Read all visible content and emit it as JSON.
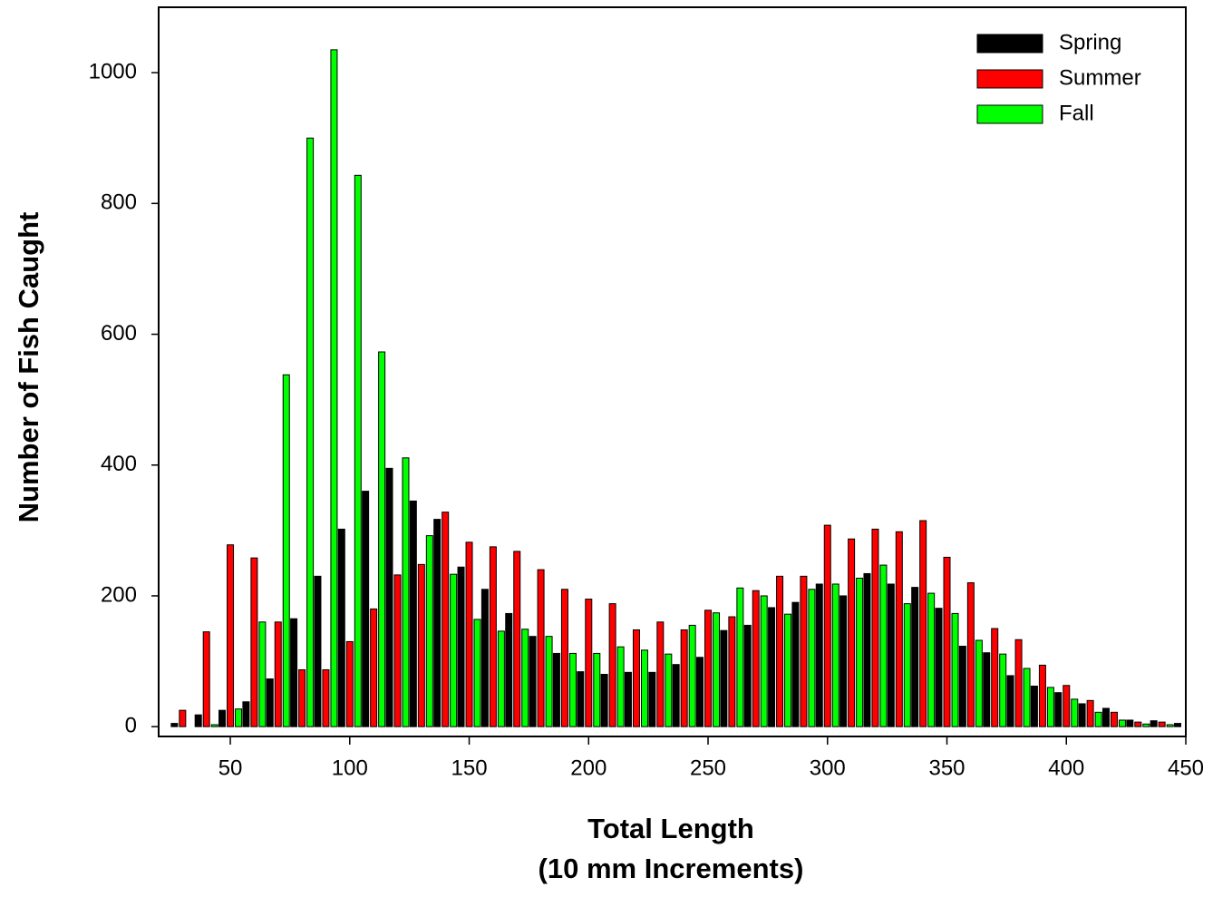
{
  "chart_data": {
    "type": "bar",
    "x_label": "Total Length",
    "x_label_2": "(10 mm Increments)",
    "y_label": "Number of Fish Caught",
    "x": [
      30,
      40,
      50,
      60,
      70,
      80,
      90,
      100,
      110,
      120,
      130,
      140,
      150,
      160,
      170,
      180,
      190,
      200,
      210,
      220,
      230,
      240,
      250,
      260,
      270,
      280,
      290,
      300,
      310,
      320,
      330,
      340,
      350,
      360,
      370,
      380,
      390,
      400,
      410,
      420,
      430,
      440,
      450
    ],
    "series": [
      {
        "name": "Spring",
        "color": "#000000",
        "values": [
          5,
          18,
          25,
          38,
          73,
          165,
          230,
          302,
          360,
          395,
          345,
          317,
          244,
          210,
          173,
          138,
          112,
          84,
          80,
          83,
          83,
          95,
          106,
          147,
          155,
          182,
          190,
          218,
          200,
          234,
          218,
          213,
          181,
          123,
          113,
          78,
          62,
          52,
          35,
          28,
          10,
          9,
          5
        ]
      },
      {
        "name": "Summer",
        "color": "#ff0000",
        "values": [
          25,
          145,
          278,
          258,
          160,
          87,
          87,
          130,
          180,
          232,
          248,
          328,
          282,
          275,
          268,
          240,
          210,
          195,
          188,
          148,
          160,
          148,
          178,
          168,
          208,
          230,
          230,
          308,
          287,
          302,
          298,
          315,
          259,
          220,
          150,
          133,
          94,
          63,
          40,
          22,
          7,
          7,
          0
        ]
      },
      {
        "name": "Fall",
        "color": "#00ff00",
        "values": [
          0,
          3,
          27,
          160,
          538,
          900,
          1035,
          843,
          573,
          411,
          292,
          233,
          164,
          146,
          149,
          138,
          112,
          112,
          122,
          117,
          111,
          155,
          174,
          212,
          200,
          172,
          210,
          218,
          227,
          247,
          188,
          204,
          173,
          132,
          111,
          89,
          60,
          42,
          22,
          10,
          4,
          3,
          0
        ]
      }
    ],
    "xlim": [
      20,
      450
    ],
    "xticks": [
      50,
      100,
      150,
      200,
      250,
      300,
      350,
      400,
      450
    ],
    "ylim": [
      -15,
      1100
    ],
    "yticks": [
      0,
      200,
      400,
      600,
      800,
      1000
    ],
    "legend": "upper-right"
  }
}
